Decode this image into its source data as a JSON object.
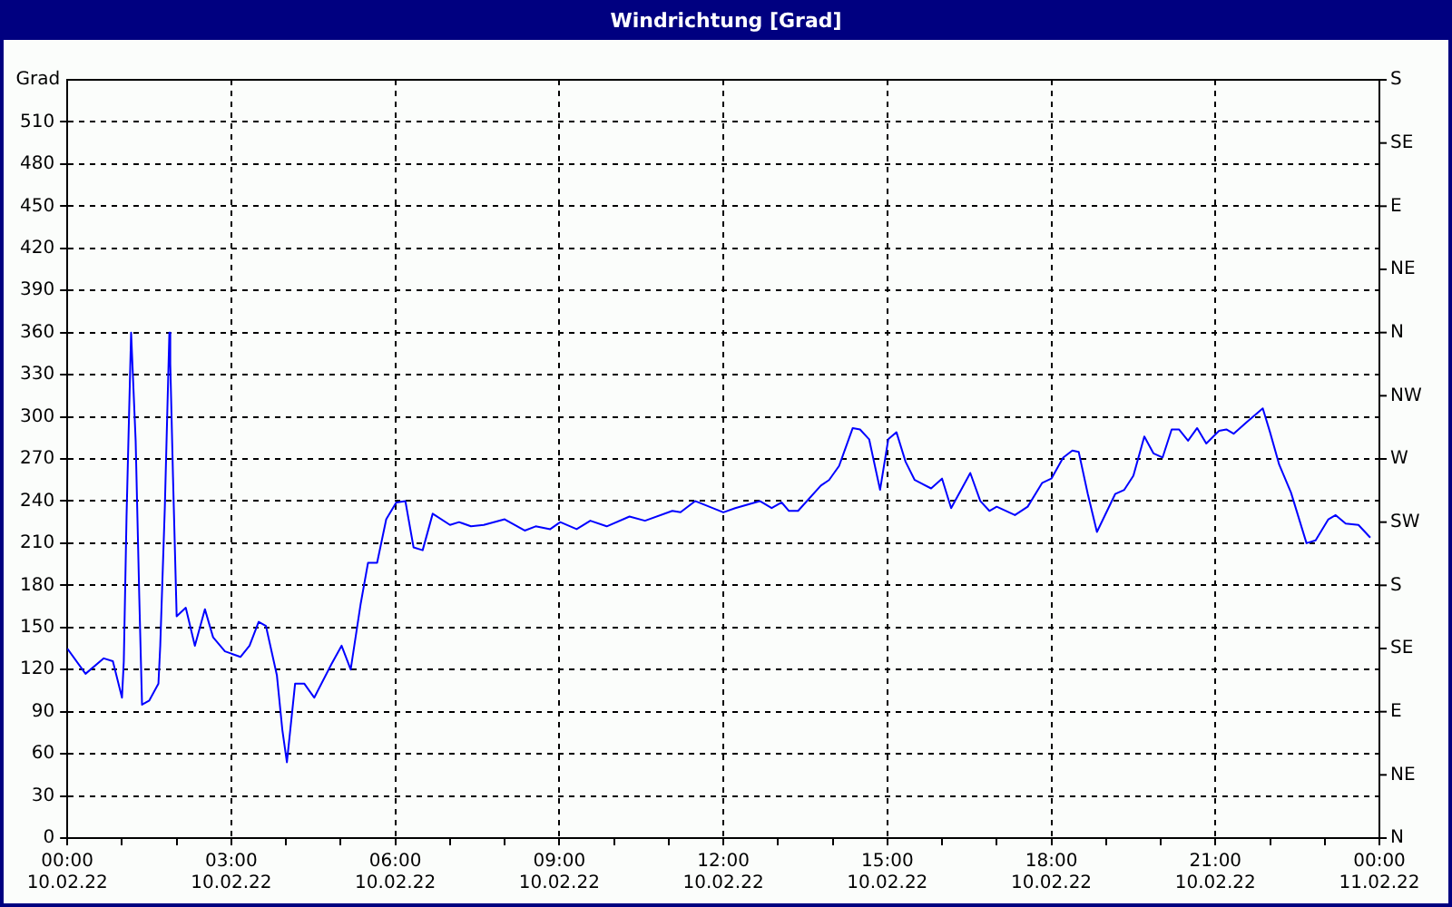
{
  "chart_data": {
    "type": "line",
    "title": "Windrichtung [Grad]",
    "ylabel": "Grad",
    "x": [
      "--02-10T00:00",
      "--02-10T00:20",
      "--02-10T00:40",
      "--02-10T00:50",
      "--02-10T01:00",
      "--02-10T01:02",
      "--02-10T01:05",
      "--02-10T01:10",
      "--02-10T01:11",
      "--02-10T01:15",
      "--02-10T01:19",
      "--02-10T01:22",
      "--02-10T01:30",
      "--02-10T01:40",
      "--02-10T01:42",
      "--02-10T01:47",
      "--02-10T01:52",
      "--02-10T01:53",
      "--02-10T01:56",
      "--02-10T02:00",
      "--02-10T02:10",
      "--02-10T02:20",
      "--02-10T02:31",
      "--02-10T02:40",
      "--02-10T02:53",
      "--02-10T03:10",
      "--02-10T03:20",
      "--02-10T03:30",
      "--02-10T03:38",
      "--02-10T03:50",
      "--02-10T03:56",
      "--02-10T04:01",
      "--02-10T04:10",
      "--02-10T04:20",
      "--02-10T04:31",
      "--02-10T04:50",
      "--02-10T05:01",
      "--02-10T05:11",
      "--02-10T05:22",
      "--02-10T05:30",
      "--02-10T05:40",
      "--02-10T05:50",
      "--02-10T06:01",
      "--02-10T06:11",
      "--02-10T06:20",
      "--02-10T06:30",
      "--02-10T06:41",
      "--02-10T07:00",
      "--02-10T07:10",
      "--02-10T07:23",
      "--02-10T07:37",
      "--02-10T08:00",
      "--02-10T08:22",
      "--02-10T08:34",
      "--02-10T08:50",
      "--02-10T09:01",
      "--02-10T09:19",
      "--02-10T09:34",
      "--02-10T09:52",
      "--02-10T10:17",
      "--02-10T10:34",
      "--02-10T11:04",
      "--02-10T11:13",
      "--02-10T11:29",
      "--02-10T12:00",
      "--02-10T12:13",
      "--02-10T12:40",
      "--02-10T12:53",
      "--02-10T13:04",
      "--02-10T13:12",
      "--02-10T13:22",
      "--02-10T13:47",
      "--02-10T13:56",
      "--02-10T14:07",
      "--02-10T14:22",
      "--02-10T14:30",
      "--02-10T14:40",
      "--02-10T14:52",
      "--02-10T15:01",
      "--02-10T15:10",
      "--02-10T15:20",
      "--02-10T15:30",
      "--02-10T15:48",
      "--02-10T16:00",
      "--02-10T16:10",
      "--02-10T16:31",
      "--02-10T16:42",
      "--02-10T16:52",
      "--02-10T17:00",
      "--02-10T17:20",
      "--02-10T17:34",
      "--02-10T17:50",
      "--02-10T18:00",
      "--02-10T18:13",
      "--02-10T18:23",
      "--02-10T18:30",
      "--02-10T18:40",
      "--02-10T18:50",
      "--02-10T19:10",
      "--02-10T19:20",
      "--02-10T19:30",
      "--02-10T19:42",
      "--02-10T19:52",
      "--02-10T20:02",
      "--02-10T20:12",
      "--02-10T20:20",
      "--02-10T20:30",
      "--02-10T20:40",
      "--02-10T20:50",
      "--02-10T21:04",
      "--02-10T21:12",
      "--02-10T21:20",
      "--02-10T21:34",
      "--02-10T21:52",
      "--02-10T22:00",
      "--02-10T22:10",
      "--02-10T22:23",
      "--02-10T22:40",
      "--02-10T22:50",
      "--02-10T23:04",
      "--02-10T23:12",
      "--02-10T23:23",
      "--02-10T23:37",
      "--02-10T23:50"
    ],
    "series": [
      {
        "color": "#0000ff",
        "values": [
          135,
          117,
          128,
          126,
          100,
          126,
          229,
          360,
          360,
          283,
          171,
          95,
          98,
          110,
          137,
          235,
          360,
          338,
          257,
          158,
          164,
          137,
          163,
          143,
          133,
          129,
          137,
          154,
          151,
          116,
          77,
          54,
          110,
          110,
          100,
          124,
          137,
          120,
          167,
          196,
          196,
          227,
          239,
          240,
          207,
          205,
          231,
          223,
          225,
          222,
          223,
          227,
          219,
          222,
          220,
          225,
          220,
          226,
          222,
          229,
          226,
          233,
          232,
          240,
          232,
          235,
          240,
          235,
          239,
          233,
          233,
          251,
          255,
          265,
          292,
          291,
          284,
          248,
          284,
          289,
          268,
          255,
          249,
          256,
          235,
          260,
          240,
          233,
          236,
          230,
          236,
          253,
          256,
          271,
          276,
          275,
          245,
          218,
          245,
          248,
          258,
          286,
          274,
          271,
          291,
          291,
          283,
          292,
          281,
          290,
          291,
          288,
          296,
          306,
          289,
          266,
          246,
          210,
          212,
          227,
          230,
          224,
          223,
          214
        ]
      }
    ],
    "xlim": [
      "--02-10T00:00",
      "--02-11T00:00"
    ],
    "xticks": [
      {
        "value": "--02-10T00:00",
        "label": "00:00\n10.02.22"
      },
      {
        "value": "--02-10T01:00",
        "label": null
      },
      {
        "value": "--02-10T02:00",
        "label": null
      },
      {
        "value": "--02-10T03:00",
        "label": "03:00\n10.02.22"
      },
      {
        "value": "--02-10T04:00",
        "label": null
      },
      {
        "value": "--02-10T05:00",
        "label": null
      },
      {
        "value": "--02-10T06:00",
        "label": "06:00\n10.02.22"
      },
      {
        "value": "--02-10T07:00",
        "label": null
      },
      {
        "value": "--02-10T08:00",
        "label": null
      },
      {
        "value": "--02-10T09:00",
        "label": "09:00\n10.02.22"
      },
      {
        "value": "--02-10T10:00",
        "label": null
      },
      {
        "value": "--02-10T11:00",
        "label": null
      },
      {
        "value": "--02-10T12:00",
        "label": "12:00\n10.02.22"
      },
      {
        "value": "--02-10T13:00",
        "label": null
      },
      {
        "value": "--02-10T14:00",
        "label": null
      },
      {
        "value": "--02-10T15:00",
        "label": "15:00\n10.02.22"
      },
      {
        "value": "--02-10T16:00",
        "label": null
      },
      {
        "value": "--02-10T17:00",
        "label": null
      },
      {
        "value": "--02-10T18:00",
        "label": "18:00\n10.02.22"
      },
      {
        "value": "--02-10T19:00",
        "label": null
      },
      {
        "value": "--02-10T20:00",
        "label": null
      },
      {
        "value": "--02-10T21:00",
        "label": "21:00\n10.02.22"
      },
      {
        "value": "--02-10T22:00",
        "label": null
      },
      {
        "value": "--02-10T23:00",
        "label": null
      },
      {
        "value": "--02-11T00:00",
        "label": "00:00\n11.02.22"
      }
    ],
    "ylim": [
      0,
      540
    ],
    "yticks": [
      0,
      30,
      60,
      90,
      120,
      150,
      180,
      210,
      240,
      270,
      300,
      330,
      360,
      390,
      420,
      450,
      480,
      510
    ],
    "annotations": [
      "N",
      "NE",
      "E",
      "SE",
      "S",
      "SW",
      "W",
      "NW",
      "N",
      "NE",
      "E",
      "SE",
      "S"
    ],
    "grid": true,
    "legend": false,
    "marker": "none",
    "line_style": "solid"
  }
}
